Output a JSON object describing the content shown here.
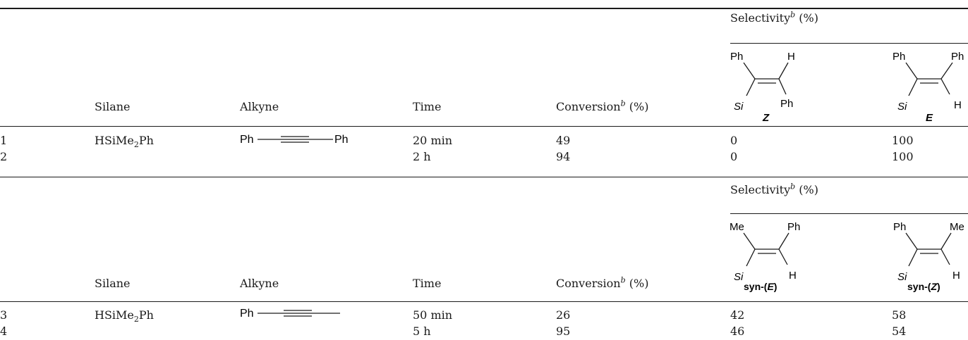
{
  "section1": {
    "headers": {
      "selectivity": "Selectivity",
      "selectivity_sup": "b",
      "selectivity_unit": " (%)",
      "silane": "Silane",
      "alkyne": "Alkyne",
      "time": "Time",
      "conversion": "Conversion",
      "conversion_sup": "b",
      "conversion_unit": " (%)"
    },
    "structure_z": {
      "top_left": "Ph",
      "top_right": "H",
      "bottom_left": "Si",
      "bottom_right": "Ph",
      "label": "Z"
    },
    "structure_e": {
      "top_left": "Ph",
      "top_right": "Ph",
      "bottom_left": "Si",
      "bottom_right": "H",
      "label": "E"
    },
    "alkyne_struct": {
      "left": "Ph",
      "right": "Ph"
    },
    "rows": [
      {
        "entry": "1",
        "silane_main": "HSiMe",
        "silane_sub": "2",
        "silane_tail": "Ph",
        "time": "20 min",
        "conversion": "49",
        "sel_a": "0",
        "sel_b": "100"
      },
      {
        "entry": "2",
        "time": "2 h",
        "conversion": "94",
        "sel_a": "0",
        "sel_b": "100"
      }
    ]
  },
  "section2": {
    "headers": {
      "selectivity": "Selectivity",
      "selectivity_sup": "b",
      "selectivity_unit": " (%)",
      "silane": "Silane",
      "alkyne": "Alkyne",
      "time": "Time",
      "conversion": "Conversion",
      "conversion_sup": "b",
      "conversion_unit": " (%)"
    },
    "structure_syn_e": {
      "top_left": "Me",
      "top_right": "Ph",
      "bottom_left": "Si",
      "bottom_right": "H",
      "label_pre": "syn-(",
      "label_italic": "E",
      "label_post": ")"
    },
    "structure_syn_z": {
      "top_left": "Ph",
      "top_right": "Me",
      "bottom_left": "Si",
      "bottom_right": "H",
      "label_pre": "syn-(",
      "label_italic": "Z",
      "label_post": ")"
    },
    "alkyne_struct": {
      "left": "Ph"
    },
    "rows": [
      {
        "entry": "3",
        "silane_main": "HSiMe",
        "silane_sub": "2",
        "silane_tail": "Ph",
        "time": "50 min",
        "conversion": "26",
        "sel_a": "42",
        "sel_b": "58"
      },
      {
        "entry": "4",
        "time": "5 h",
        "conversion": "95",
        "sel_a": "46",
        "sel_b": "54"
      }
    ]
  }
}
